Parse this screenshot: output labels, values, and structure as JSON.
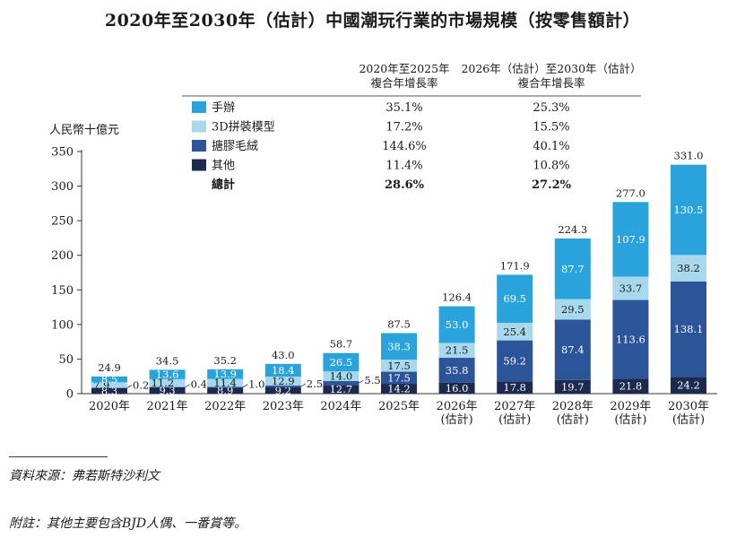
{
  "title": "2020年至2030年（估計）中國潮玩行業的市場規模（按零售額計）",
  "source": "資料來源：弗若斯特沙利文",
  "footnote": "附註：其他主要包含BJD人偶、一番賞等。",
  "colors": {
    "hand_figure": "#2aa3dc",
    "model_3d": "#a8d8ec",
    "vinyl_plush": "#2c5499",
    "others": "#1c2a4f",
    "header_rule": "#555555",
    "axis": "#333333"
  },
  "chart_data": {
    "type": "bar",
    "stacked": true,
    "ylabel": "人民幣十億元",
    "ylim": [
      0,
      350
    ],
    "yticks": [
      0,
      50,
      100,
      150,
      200,
      250,
      300,
      350
    ],
    "categories": [
      [
        "2020年"
      ],
      [
        "2021年"
      ],
      [
        "2022年"
      ],
      [
        "2023年"
      ],
      [
        "2024年"
      ],
      [
        "2025年"
      ],
      [
        "2026年",
        "(估計)"
      ],
      [
        "2027年",
        "(估計)"
      ],
      [
        "2028年",
        "(估計)"
      ],
      [
        "2029年",
        "(估計)"
      ],
      [
        "2030年",
        "(估計)"
      ]
    ],
    "series": [
      {
        "key": "others",
        "name": "其他",
        "values": [
          8.3,
          9.3,
          8.9,
          9.2,
          12.7,
          14.2,
          16.0,
          17.8,
          19.7,
          21.8,
          24.2
        ]
      },
      {
        "key": "vinyl_plush",
        "name": "搪膠毛絨",
        "values": [
          0.2,
          0.4,
          1.0,
          2.5,
          5.5,
          17.5,
          35.8,
          59.2,
          87.4,
          113.6,
          138.1
        ]
      },
      {
        "key": "model_3d",
        "name": "3D拼裝模型",
        "values": [
          7.9,
          11.2,
          11.4,
          12.9,
          14.0,
          17.5,
          21.5,
          25.4,
          29.5,
          33.7,
          38.2
        ]
      },
      {
        "key": "hand_figure",
        "name": "手辦",
        "values": [
          8.5,
          13.6,
          13.9,
          18.4,
          26.5,
          38.3,
          53.0,
          69.5,
          87.7,
          107.9,
          130.5
        ]
      }
    ],
    "totals": [
      24.9,
      34.5,
      35.2,
      43.0,
      58.7,
      87.5,
      126.4,
      171.9,
      224.3,
      277.0,
      331.0
    ],
    "cagr_headers": {
      "col1": [
        "2020年至2025年",
        "複合年增長率"
      ],
      "col2": [
        "2026年（估計）至2030年（估計）",
        "複合年增長率"
      ]
    },
    "legend_table": [
      {
        "key": "hand_figure",
        "label": "手辦",
        "cagr_2020_2025": "35.1%",
        "cagr_2026_2030": "25.3%"
      },
      {
        "key": "model_3d",
        "label": "3D拼裝模型",
        "cagr_2020_2025": "17.2%",
        "cagr_2026_2030": "15.5%"
      },
      {
        "key": "vinyl_plush",
        "label": "搪膠毛絨",
        "cagr_2020_2025": "144.6%",
        "cagr_2026_2030": "40.1%"
      },
      {
        "key": "others",
        "label": "其他",
        "cagr_2020_2025": "11.4%",
        "cagr_2026_2030": "10.8%"
      },
      {
        "key": "total",
        "label": "總計",
        "cagr_2020_2025": "28.6%",
        "cagr_2026_2030": "27.2%"
      }
    ]
  }
}
